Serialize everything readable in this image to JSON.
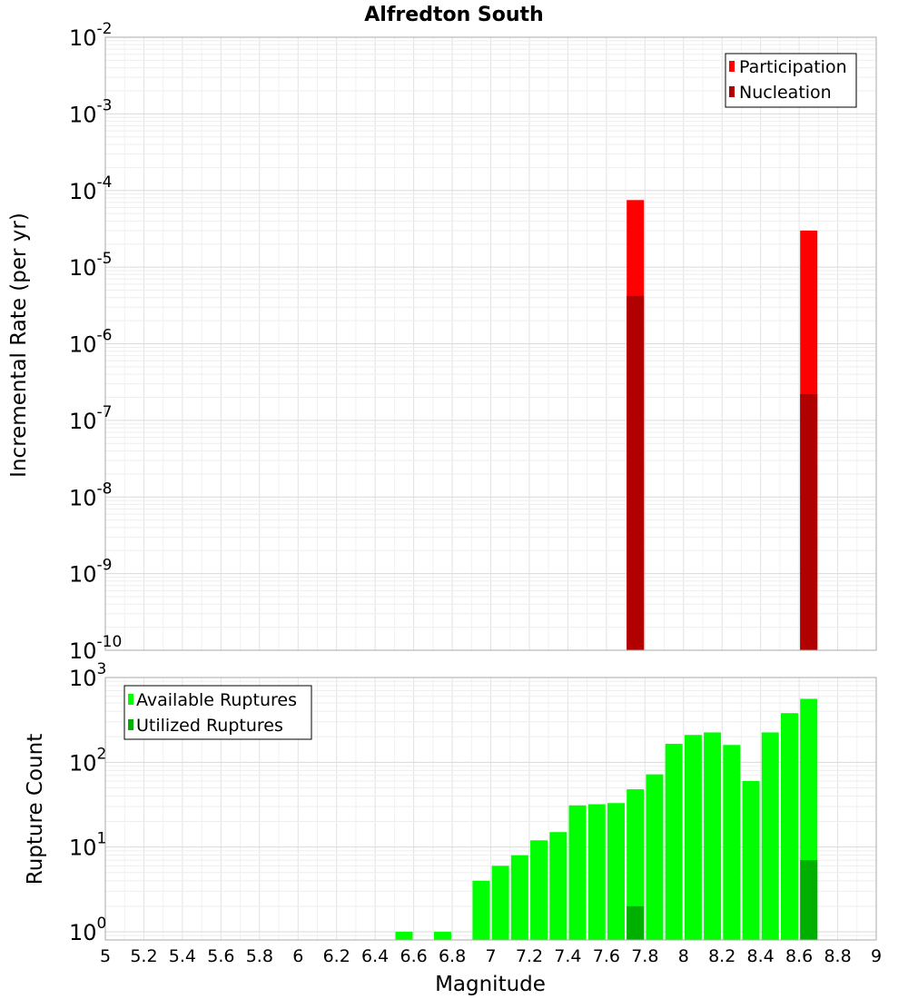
{
  "chart_data": [
    {
      "type": "bar",
      "title": "Alfredton South",
      "xlabel": "",
      "ylabel": "Incremental Rate (per yr)",
      "y_scale": "log",
      "xlim": [
        5,
        9
      ],
      "ylim": [
        1e-10,
        0.01
      ],
      "y_ticks": [
        {
          "base": "10",
          "exp": "-10",
          "value": 1e-10
        },
        {
          "base": "10",
          "exp": "-9",
          "value": 1e-09
        },
        {
          "base": "10",
          "exp": "-8",
          "value": 1e-08
        },
        {
          "base": "10",
          "exp": "-7",
          "value": 1e-07
        },
        {
          "base": "10",
          "exp": "-6",
          "value": 1e-06
        },
        {
          "base": "10",
          "exp": "-5",
          "value": 1e-05
        },
        {
          "base": "10",
          "exp": "-4",
          "value": 0.0001
        },
        {
          "base": "10",
          "exp": "-3",
          "value": 0.001
        },
        {
          "base": "10",
          "exp": "-2",
          "value": 0.01
        }
      ],
      "grid": true,
      "legend_position": "top-right",
      "series": [
        {
          "name": "Participation",
          "color": "#ff0000",
          "x": [
            7.75,
            8.65
          ],
          "values": [
            7.5e-05,
            3e-05
          ]
        },
        {
          "name": "Nucleation",
          "color": "#b00000",
          "x": [
            7.75,
            8.65
          ],
          "values": [
            4.2e-06,
            2.2e-07
          ]
        }
      ]
    },
    {
      "type": "bar",
      "title": "",
      "xlabel": "Magnitude",
      "ylabel": "Rupture Count",
      "y_scale": "log",
      "xlim": [
        5,
        9
      ],
      "ylim": [
        0.8,
        1000
      ],
      "x_ticks": [
        "5",
        "5.2",
        "5.4",
        "5.6",
        "5.8",
        "6",
        "6.2",
        "6.4",
        "6.6",
        "6.8",
        "7",
        "7.2",
        "7.4",
        "7.6",
        "7.8",
        "8",
        "8.2",
        "8.4",
        "8.6",
        "8.8",
        "9"
      ],
      "y_ticks": [
        {
          "base": "10",
          "exp": "0",
          "value": 1
        },
        {
          "base": "10",
          "exp": "1",
          "value": 10
        },
        {
          "base": "10",
          "exp": "2",
          "value": 100
        },
        {
          "base": "10",
          "exp": "3",
          "value": 1000
        }
      ],
      "grid": true,
      "legend_position": "top-left",
      "series": [
        {
          "name": "Available Ruptures",
          "color": "#00ff00",
          "x": [
            6.55,
            6.75,
            6.95,
            7.05,
            7.15,
            7.25,
            7.35,
            7.45,
            7.55,
            7.65,
            7.75,
            7.85,
            7.95,
            8.05,
            8.15,
            8.25,
            8.35,
            8.45,
            8.55,
            8.65
          ],
          "values": [
            1,
            1,
            4,
            6,
            8,
            12,
            15,
            31,
            32,
            33,
            48,
            72,
            165,
            210,
            225,
            160,
            60,
            225,
            380,
            560
          ]
        },
        {
          "name": "Utilized Ruptures",
          "color": "#00b000",
          "x": [
            7.75,
            8.65
          ],
          "values": [
            2,
            7
          ]
        }
      ]
    }
  ]
}
